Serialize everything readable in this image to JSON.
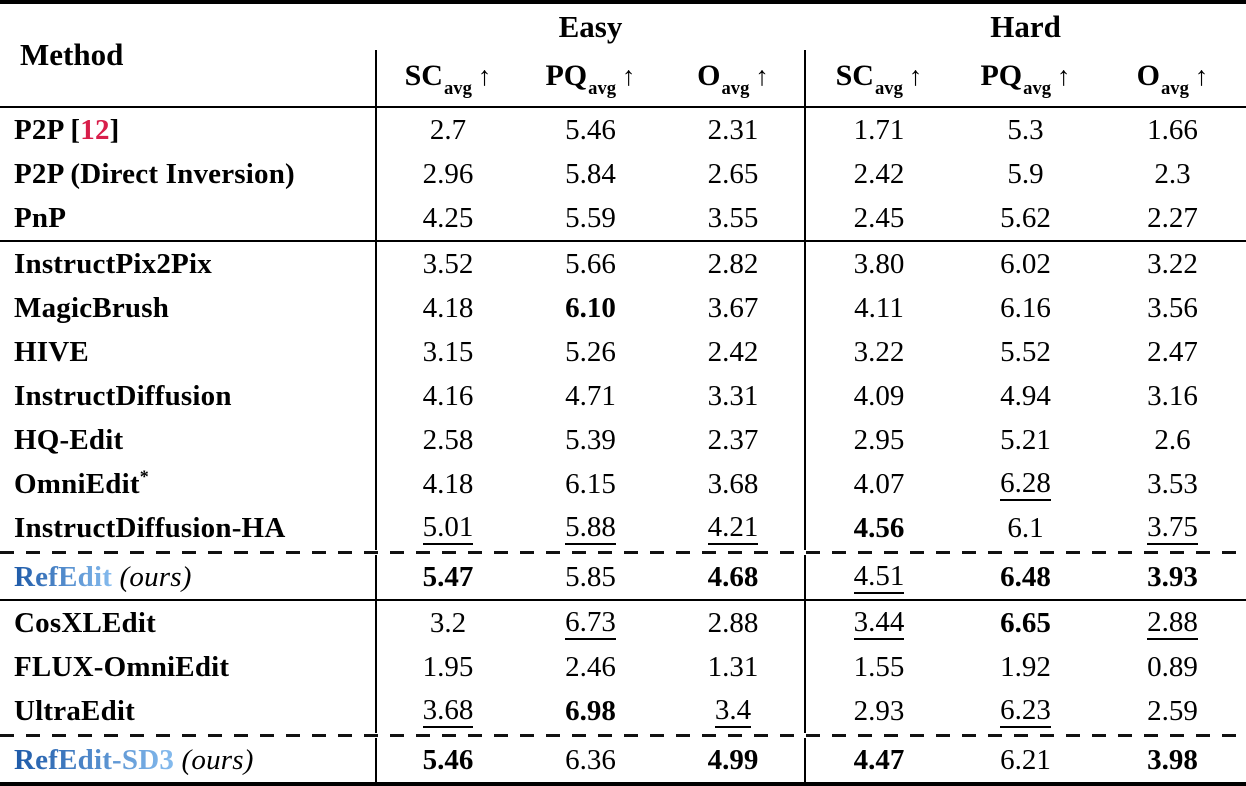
{
  "colors": {
    "cite_red": "#d81e4a",
    "ours_blue_start": "#1e5aa8",
    "ours_blue_end": "#85bbee",
    "rule": "#111111",
    "background": "#ffffff"
  },
  "header": {
    "method_label": "Method",
    "group_labels": [
      "Easy",
      "Hard"
    ],
    "metrics": [
      {
        "name": "SC",
        "sub": "avg",
        "arrow": "↑"
      },
      {
        "name": "PQ",
        "sub": "avg",
        "arrow": "↑"
      },
      {
        "name": "O",
        "sub": "avg",
        "arrow": "↑"
      }
    ]
  },
  "rows": [
    {
      "method": {
        "name": "P2P",
        "cite": "12",
        "sup": "",
        "ours": false
      },
      "sep": null,
      "cells": [
        {
          "v": "2.7",
          "s": ""
        },
        {
          "v": "5.46",
          "s": ""
        },
        {
          "v": "2.31",
          "s": ""
        },
        {
          "v": "1.71",
          "s": ""
        },
        {
          "v": "5.3",
          "s": ""
        },
        {
          "v": "1.66",
          "s": ""
        }
      ]
    },
    {
      "method": {
        "name": "P2P (Direct Inversion)",
        "cite": "",
        "sup": "",
        "ours": false
      },
      "sep": null,
      "cells": [
        {
          "v": "2.96",
          "s": ""
        },
        {
          "v": "5.84",
          "s": ""
        },
        {
          "v": "2.65",
          "s": ""
        },
        {
          "v": "2.42",
          "s": ""
        },
        {
          "v": "5.9",
          "s": ""
        },
        {
          "v": "2.3",
          "s": ""
        }
      ]
    },
    {
      "method": {
        "name": "PnP",
        "cite": "",
        "sup": "",
        "ours": false
      },
      "sep": null,
      "cells": [
        {
          "v": "4.25",
          "s": ""
        },
        {
          "v": "5.59",
          "s": ""
        },
        {
          "v": "3.55",
          "s": ""
        },
        {
          "v": "2.45",
          "s": ""
        },
        {
          "v": "5.62",
          "s": ""
        },
        {
          "v": "2.27",
          "s": ""
        }
      ]
    },
    {
      "method": {
        "name": "InstructPix2Pix",
        "cite": "",
        "sup": "",
        "ours": false
      },
      "sep": "solid",
      "cells": [
        {
          "v": "3.52",
          "s": ""
        },
        {
          "v": "5.66",
          "s": ""
        },
        {
          "v": "2.82",
          "s": ""
        },
        {
          "v": "3.80",
          "s": ""
        },
        {
          "v": "6.02",
          "s": ""
        },
        {
          "v": "3.22",
          "s": ""
        }
      ]
    },
    {
      "method": {
        "name": "MagicBrush",
        "cite": "",
        "sup": "",
        "ours": false
      },
      "sep": null,
      "cells": [
        {
          "v": "4.18",
          "s": ""
        },
        {
          "v": "6.10",
          "s": "b"
        },
        {
          "v": "3.67",
          "s": ""
        },
        {
          "v": "4.11",
          "s": ""
        },
        {
          "v": "6.16",
          "s": ""
        },
        {
          "v": "3.56",
          "s": ""
        }
      ]
    },
    {
      "method": {
        "name": "HIVE",
        "cite": "",
        "sup": "",
        "ours": false
      },
      "sep": null,
      "cells": [
        {
          "v": "3.15",
          "s": ""
        },
        {
          "v": "5.26",
          "s": ""
        },
        {
          "v": "2.42",
          "s": ""
        },
        {
          "v": "3.22",
          "s": ""
        },
        {
          "v": "5.52",
          "s": ""
        },
        {
          "v": "2.47",
          "s": ""
        }
      ]
    },
    {
      "method": {
        "name": "InstructDiffusion",
        "cite": "",
        "sup": "",
        "ours": false
      },
      "sep": null,
      "cells": [
        {
          "v": "4.16",
          "s": ""
        },
        {
          "v": "4.71",
          "s": ""
        },
        {
          "v": "3.31",
          "s": ""
        },
        {
          "v": "4.09",
          "s": ""
        },
        {
          "v": "4.94",
          "s": ""
        },
        {
          "v": "3.16",
          "s": ""
        }
      ]
    },
    {
      "method": {
        "name": "HQ-Edit",
        "cite": "",
        "sup": "",
        "ours": false
      },
      "sep": null,
      "cells": [
        {
          "v": "2.58",
          "s": ""
        },
        {
          "v": "5.39",
          "s": ""
        },
        {
          "v": "2.37",
          "s": ""
        },
        {
          "v": "2.95",
          "s": ""
        },
        {
          "v": "5.21",
          "s": ""
        },
        {
          "v": "2.6",
          "s": ""
        }
      ]
    },
    {
      "method": {
        "name": "OmniEdit",
        "cite": "",
        "sup": "*",
        "ours": false
      },
      "sep": null,
      "cells": [
        {
          "v": "4.18",
          "s": ""
        },
        {
          "v": "6.15",
          "s": ""
        },
        {
          "v": "3.68",
          "s": ""
        },
        {
          "v": "4.07",
          "s": ""
        },
        {
          "v": "6.28",
          "s": "u"
        },
        {
          "v": "3.53",
          "s": ""
        }
      ]
    },
    {
      "method": {
        "name": "InstructDiffusion-HA",
        "cite": "",
        "sup": "",
        "ours": false
      },
      "sep": null,
      "cells": [
        {
          "v": "5.01",
          "s": "u"
        },
        {
          "v": "5.88",
          "s": "u"
        },
        {
          "v": "4.21",
          "s": "u"
        },
        {
          "v": "4.56",
          "s": "b"
        },
        {
          "v": "6.1",
          "s": ""
        },
        {
          "v": "3.75",
          "s": "u"
        }
      ]
    },
    {
      "method": {
        "name": "RefEdit",
        "cite": "",
        "sup": "",
        "ours": true
      },
      "sep": "dashed",
      "cells": [
        {
          "v": "5.47",
          "s": "b"
        },
        {
          "v": "5.85",
          "s": ""
        },
        {
          "v": "4.68",
          "s": "b"
        },
        {
          "v": "4.51",
          "s": "u"
        },
        {
          "v": "6.48",
          "s": "b"
        },
        {
          "v": "3.93",
          "s": "b"
        }
      ]
    },
    {
      "method": {
        "name": "CosXLEdit",
        "cite": "",
        "sup": "",
        "ours": false
      },
      "sep": "solid",
      "cells": [
        {
          "v": "3.2",
          "s": ""
        },
        {
          "v": "6.73",
          "s": "u"
        },
        {
          "v": "2.88",
          "s": ""
        },
        {
          "v": "3.44",
          "s": "u"
        },
        {
          "v": "6.65",
          "s": "b"
        },
        {
          "v": "2.88",
          "s": "u"
        }
      ]
    },
    {
      "method": {
        "name": "FLUX-OmniEdit",
        "cite": "",
        "sup": "",
        "ours": false
      },
      "sep": null,
      "cells": [
        {
          "v": "1.95",
          "s": ""
        },
        {
          "v": "2.46",
          "s": ""
        },
        {
          "v": "1.31",
          "s": ""
        },
        {
          "v": "1.55",
          "s": ""
        },
        {
          "v": "1.92",
          "s": ""
        },
        {
          "v": "0.89",
          "s": ""
        }
      ]
    },
    {
      "method": {
        "name": "UltraEdit",
        "cite": "",
        "sup": "",
        "ours": false
      },
      "sep": null,
      "cells": [
        {
          "v": "3.68",
          "s": "u"
        },
        {
          "v": "6.98",
          "s": "b"
        },
        {
          "v": "3.4",
          "s": "u"
        },
        {
          "v": "2.93",
          "s": ""
        },
        {
          "v": "6.23",
          "s": "u"
        },
        {
          "v": "2.59",
          "s": ""
        }
      ]
    },
    {
      "method": {
        "name": "RefEdit-SD3",
        "cite": "",
        "sup": "",
        "ours": true
      },
      "sep": "dashed",
      "cells": [
        {
          "v": "5.46",
          "s": "b"
        },
        {
          "v": "6.36",
          "s": ""
        },
        {
          "v": "4.99",
          "s": "b"
        },
        {
          "v": "4.47",
          "s": "b"
        },
        {
          "v": "6.21",
          "s": ""
        },
        {
          "v": "3.98",
          "s": "b"
        }
      ]
    }
  ],
  "ours_suffix": "(ours)"
}
